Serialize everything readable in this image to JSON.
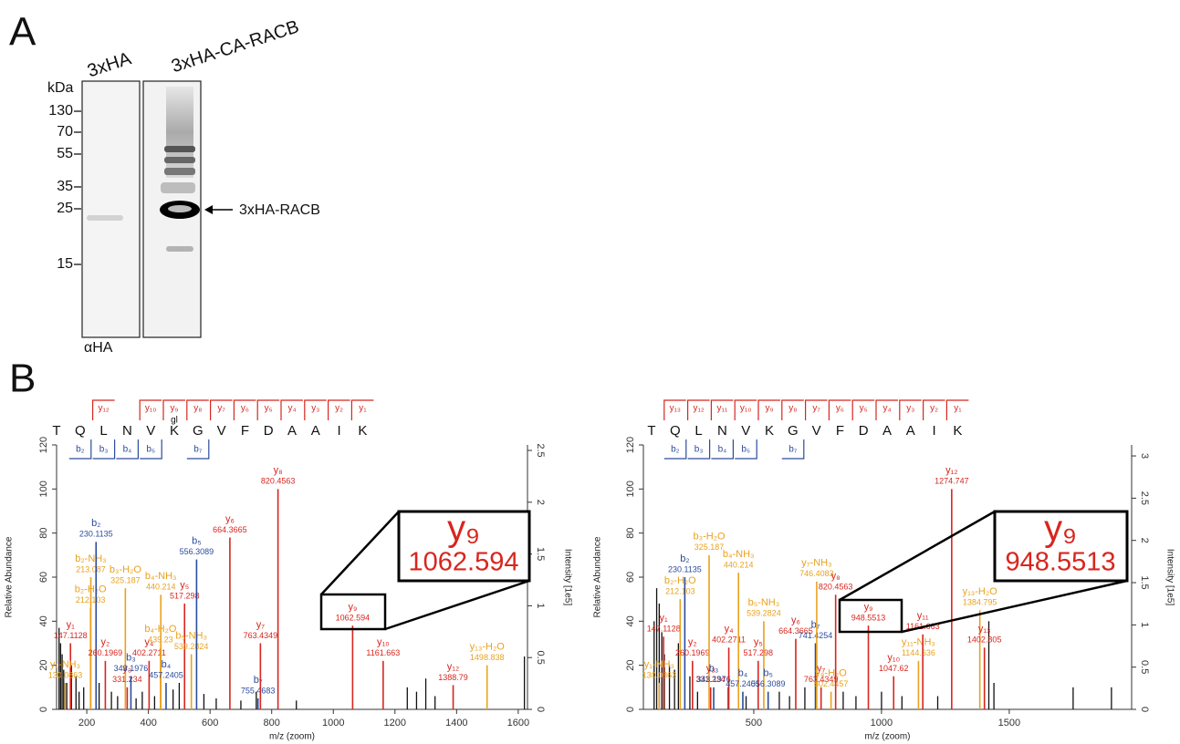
{
  "panel_a": {
    "label": "A",
    "lanes": [
      "3xHA",
      "3xHA-CA-RACB"
    ],
    "unit": "kDa",
    "markers": [
      130,
      70,
      55,
      35,
      25,
      15
    ],
    "band_label": "3xHA-RACB",
    "antibody": "αHA"
  },
  "panel_b_label": "B",
  "chart_data": [
    {
      "type": "spectrum",
      "sequence": [
        "T",
        "Q",
        "L",
        "N",
        "V",
        "K",
        "G",
        "V",
        "F",
        "D",
        "A",
        "A",
        "I",
        "K"
      ],
      "modifications": [
        null,
        null,
        null,
        null,
        null,
        "gl",
        null,
        null,
        null,
        null,
        null,
        null,
        null,
        null
      ],
      "y_ions": [
        null,
        null,
        "y₁₂",
        null,
        "y₁₀",
        "y₉",
        "y₈",
        "y₇",
        "y₆",
        "y₅",
        "y₄",
        "y₃",
        "y₂",
        "y₁"
      ],
      "b_ions": [
        null,
        "b₂",
        "b₃",
        "b₄",
        "b₅",
        null,
        "b₇",
        null,
        null,
        null,
        null,
        null,
        null,
        null
      ],
      "x_label": "m/z (zoom)",
      "y_label": "Relative Abundance",
      "y2_label": "Intensity [1e5]",
      "xlim": [
        102,
        1630
      ],
      "xticks": [
        200,
        400,
        600,
        800,
        1000,
        1200,
        1400,
        1600
      ],
      "ylim": [
        0,
        120
      ],
      "yticks": [
        0,
        20,
        40,
        60,
        80,
        100,
        120
      ],
      "y2lim": [
        0,
        2.553
      ],
      "y2ticks": [
        0,
        0.5,
        1,
        1.5,
        2,
        2.5
      ],
      "peaks": [
        {
          "ion": "y₁",
          "x": 147.1128,
          "value": 30,
          "color": "#d7261e"
        },
        {
          "ion": "y₁-NH₃",
          "x": 130.0863,
          "value": 12,
          "color": "#e9a21f"
        },
        {
          "ion": "b₂-H₂O",
          "x": 212.103,
          "value": 46,
          "color": "#e9a21f"
        },
        {
          "ion": "b₂-NH₃",
          "x": 213.087,
          "value": 60,
          "color": "#e9a21f"
        },
        {
          "ion": "b₂",
          "x": 230.1135,
          "value": 76,
          "color": "#2a4c9c"
        },
        {
          "ion": "y₂",
          "x": 260.1969,
          "value": 22,
          "color": "#d7261e"
        },
        {
          "ion": "b₃-H₂O",
          "x": 325.187,
          "value": 55,
          "color": "#e9a21f"
        },
        {
          "ion": "y₃",
          "x": 331.234,
          "value": 10,
          "color": "#d7261e"
        },
        {
          "ion": "b₃",
          "x": 343.1976,
          "value": 15,
          "color": "#2a4c9c"
        },
        {
          "ion": "y₄",
          "x": 402.2711,
          "value": 22,
          "color": "#d7261e"
        },
        {
          "ion": "b₄-H₂O",
          "x": 439.23,
          "value": 28,
          "color": "#e9a21f"
        },
        {
          "ion": "b₄-NH₃",
          "x": 440.214,
          "value": 52,
          "color": "#e9a21f"
        },
        {
          "ion": "b₄",
          "x": 457.2405,
          "value": 12,
          "color": "#2a4c9c"
        },
        {
          "ion": "y₅",
          "x": 517.298,
          "value": 48,
          "color": "#d7261e"
        },
        {
          "ion": "b₅-NH₃",
          "x": 539.2824,
          "value": 25,
          "color": "#e9a21f"
        },
        {
          "ion": "b₅",
          "x": 556.3089,
          "value": 68,
          "color": "#2a4c9c"
        },
        {
          "ion": "y₆",
          "x": 664.3665,
          "value": 78,
          "color": "#d7261e"
        },
        {
          "ion": "b₇",
          "x": 755.4683,
          "value": 5,
          "color": "#2a4c9c"
        },
        {
          "ion": "y₇",
          "x": 763.4349,
          "value": 30,
          "color": "#d7261e"
        },
        {
          "ion": "y₈",
          "x": 820.4563,
          "value": 100,
          "color": "#d7261e"
        },
        {
          "ion": "y₉",
          "x": 1062.594,
          "value": 38,
          "color": "#d7261e"
        },
        {
          "ion": "y₁₀",
          "x": 1161.663,
          "value": 22,
          "color": "#d7261e"
        },
        {
          "ion": "y₁₂",
          "x": 1388.79,
          "value": 11,
          "color": "#d7261e"
        },
        {
          "ion": "y₁₃-H₂O",
          "x": 1498.838,
          "value": 20,
          "color": "#e9a21f"
        }
      ],
      "other_peaks": {
        "color": "#111111",
        "x": [
          110,
          115,
          120,
          125,
          135,
          150,
          165,
          175,
          190,
          240,
          280,
          300,
          360,
          380,
          420,
          480,
          500,
          580,
          620,
          700,
          750,
          880,
          1240,
          1270,
          1300,
          1330,
          1620
        ],
        "values": [
          37,
          30,
          25,
          18,
          12,
          20,
          15,
          8,
          10,
          12,
          8,
          6,
          5,
          8,
          6,
          9,
          12,
          7,
          5,
          4,
          8,
          4,
          10,
          8,
          14,
          6,
          24
        ]
      }
    },
    {
      "type": "spectrum",
      "sequence": [
        "T",
        "Q",
        "L",
        "N",
        "V",
        "K",
        "G",
        "V",
        "F",
        "D",
        "A",
        "A",
        "I",
        "K"
      ],
      "y_ions": [
        null,
        "y₁₃",
        "y₁₂",
        "y₁₁",
        "y₁₀",
        "y₉",
        "y₈",
        "y₇",
        "y₆",
        "y₅",
        "y₄",
        "y₃",
        "y₂",
        "y₁"
      ],
      "b_ions": [
        null,
        "b₂",
        "b₃",
        "b₄",
        "b₅",
        null,
        "b₇",
        null,
        null,
        null,
        null,
        null,
        null,
        null
      ],
      "x_label": "m/z (zoom)",
      "y_label": "Relative Abundance",
      "y2_label": "Intensity [1e5]",
      "xlim": [
        68,
        1979
      ],
      "xticks": [
        500,
        1000,
        1500
      ],
      "ylim": [
        0,
        120
      ],
      "yticks": [
        0,
        20,
        40,
        60,
        80,
        100,
        120
      ],
      "y2lim": [
        0,
        3.13
      ],
      "y2ticks": [
        0,
        0.5,
        1,
        1.5,
        2,
        2.5,
        3
      ],
      "peaks": [
        {
          "ion": "y₁-NH₃",
          "x": 130.0863,
          "value": 12,
          "color": "#e9a21f"
        },
        {
          "ion": "y₁",
          "x": 147.1128,
          "value": 33,
          "color": "#d7261e"
        },
        {
          "ion": "b₂-H₂O",
          "x": 212.103,
          "value": 50,
          "color": "#e9a21f"
        },
        {
          "ion": "b₂",
          "x": 230.1135,
          "value": 60,
          "color": "#2a4c9c"
        },
        {
          "ion": "y₂",
          "x": 260.1969,
          "value": 22,
          "color": "#d7261e"
        },
        {
          "ion": "b₃-H₂O",
          "x": 325.187,
          "value": 70,
          "color": "#e9a21f"
        },
        {
          "ion": "y₃",
          "x": 331.234,
          "value": 10,
          "color": "#d7261e"
        },
        {
          "ion": "b₃",
          "x": 343.1976,
          "value": 10,
          "color": "#2a4c9c"
        },
        {
          "ion": "y₄",
          "x": 402.2711,
          "value": 28,
          "color": "#d7261e"
        },
        {
          "ion": "b₄-NH₃",
          "x": 440.214,
          "value": 62,
          "color": "#e9a21f"
        },
        {
          "ion": "b₄",
          "x": 457.2405,
          "value": 8,
          "color": "#2a4c9c"
        },
        {
          "ion": "y₅",
          "x": 517.298,
          "value": 22,
          "color": "#d7261e"
        },
        {
          "ion": "b₅-NH₃",
          "x": 539.2824,
          "value": 40,
          "color": "#e9a21f"
        },
        {
          "ion": "b₅",
          "x": 556.3089,
          "value": 8,
          "color": "#2a4c9c"
        },
        {
          "ion": "y₆",
          "x": 664.3665,
          "value": 32,
          "color": "#d7261e"
        },
        {
          "ion": "b₇",
          "x": 741.4254,
          "value": 30,
          "color": "#2a4c9c"
        },
        {
          "ion": "y₇-NH₃",
          "x": 746.4083,
          "value": 58,
          "color": "#e9a21f"
        },
        {
          "ion": "y₇",
          "x": 763.4349,
          "value": 10,
          "color": "#d7261e"
        },
        {
          "ion": "y₈-H₂O",
          "x": 802.4457,
          "value": 8,
          "color": "#e9a21f"
        },
        {
          "ion": "y₈",
          "x": 820.4563,
          "value": 52,
          "color": "#d7261e"
        },
        {
          "ion": "y₉",
          "x": 948.5513,
          "value": 38,
          "color": "#d7261e"
        },
        {
          "ion": "y₁₀",
          "x": 1047.62,
          "value": 15,
          "color": "#d7261e"
        },
        {
          "ion": "y₁₁-NH₃",
          "x": 1144.636,
          "value": 22,
          "color": "#e9a21f"
        },
        {
          "ion": "y₁₁",
          "x": 1161.663,
          "value": 34,
          "color": "#d7261e"
        },
        {
          "ion": "y₁₂",
          "x": 1274.747,
          "value": 100,
          "color": "#d7261e"
        },
        {
          "ion": "y₁₃-H₂O",
          "x": 1384.795,
          "value": 45,
          "color": "#e9a21f"
        },
        {
          "ion": "y₁₃",
          "x": 1402.805,
          "value": 28,
          "color": "#d7261e"
        }
      ],
      "other_peaks": {
        "color": "#111111",
        "x": [
          110,
          120,
          130,
          140,
          150,
          170,
          190,
          205,
          250,
          280,
          400,
          470,
          600,
          640,
          700,
          850,
          900,
          1000,
          1080,
          1220,
          1420,
          1440,
          1750,
          1900
        ],
        "values": [
          40,
          55,
          48,
          35,
          25,
          20,
          18,
          30,
          15,
          8,
          10,
          6,
          8,
          6,
          10,
          8,
          6,
          8,
          6,
          6,
          40,
          12,
          10,
          10
        ]
      }
    }
  ]
}
